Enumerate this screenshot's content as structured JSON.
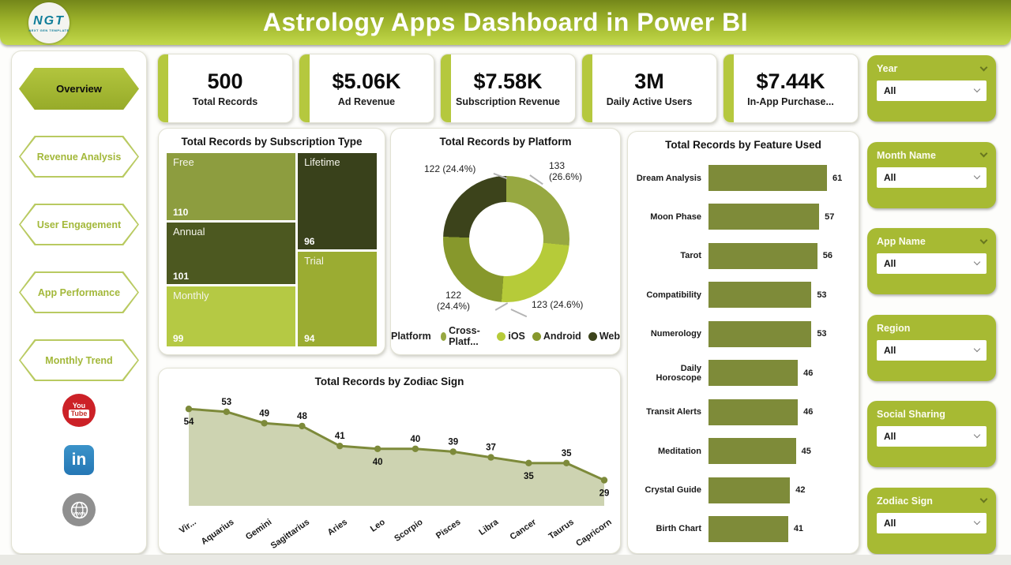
{
  "header": {
    "title": "Astrology Apps Dashboard in Power BI",
    "logo": {
      "text": "NGT",
      "subtext": "NEXT GEN TEMPLATE"
    }
  },
  "nav": {
    "items": [
      {
        "label": "Overview",
        "active": true
      },
      {
        "label": "Revenue Analysis",
        "active": false
      },
      {
        "label": "User Engagement",
        "active": false
      },
      {
        "label": "App Performance",
        "active": false
      },
      {
        "label": "Monthly Trend",
        "active": false
      }
    ],
    "social": [
      {
        "name": "youtube",
        "line1": "You",
        "line2": "Tube",
        "color": "#cc2127"
      },
      {
        "name": "linkedin",
        "text": "in",
        "color": "#2577b5"
      },
      {
        "name": "website",
        "color": "#8f8f8f"
      }
    ]
  },
  "kpis": [
    {
      "value": "500",
      "label": "Total Records"
    },
    {
      "value": "$5.06K",
      "label": "Ad Revenue"
    },
    {
      "value": "$7.58K",
      "label": "Subscription Revenue"
    },
    {
      "value": "3M",
      "label": "Daily Active Users"
    },
    {
      "value": "$7.44K",
      "label": "In-App Purchase..."
    }
  ],
  "filters": [
    {
      "title": "Year",
      "value": "All",
      "collapse_chevron": true
    },
    {
      "title": "Month Name",
      "value": "All",
      "collapse_chevron": true
    },
    {
      "title": "App Name",
      "value": "All",
      "collapse_chevron": true
    },
    {
      "title": "Region",
      "value": "All",
      "collapse_chevron": false
    },
    {
      "title": "Social Sharing",
      "value": "All",
      "collapse_chevron": false
    },
    {
      "title": "Zodiac Sign",
      "value": "All",
      "collapse_chevron": true
    }
  ],
  "accent": {
    "green": "#a7ba33",
    "kpi_bar": "#b5c83e",
    "header_top": "#74871a",
    "header_bottom": "#c2d84a"
  },
  "chart_data": [
    {
      "type": "treemap",
      "title": "Total Records by Subscription Type",
      "items": [
        {
          "label": "Free",
          "value": 110,
          "color": "#8d9d3f"
        },
        {
          "label": "Annual",
          "value": 101,
          "color": "#4c5820"
        },
        {
          "label": "Monthly",
          "value": 99,
          "color": "#b5c944"
        },
        {
          "label": "Lifetime",
          "value": 96,
          "color": "#39411b"
        },
        {
          "label": "Trial",
          "value": 94,
          "color": "#9bac32"
        }
      ],
      "layout": {
        "left_column": [
          "Free",
          "Annual",
          "Monthly"
        ],
        "right_column": [
          "Lifetime",
          "Trial"
        ]
      }
    },
    {
      "type": "pie",
      "title": "Total Records by Platform",
      "legend_title": "Platform",
      "legend_position": "bottom",
      "slices": [
        {
          "label": "Cross-Platf...",
          "value": 133,
          "pct": "26.6%",
          "color": "#97a841"
        },
        {
          "label": "iOS",
          "value": 123,
          "pct": "24.6%",
          "color": "#b6cb39"
        },
        {
          "label": "Android",
          "value": 122,
          "pct": "24.4%",
          "color": "#87982c"
        },
        {
          "label": "Web",
          "value": 122,
          "pct": "24.4%",
          "color": "#3c431b"
        }
      ],
      "callouts": [
        {
          "slice": 3,
          "lines": 1,
          "pos": "top-left"
        },
        {
          "slice": 0,
          "lines": 2,
          "pos": "top-right"
        },
        {
          "slice": 2,
          "lines": 2,
          "pos": "bottom-left"
        },
        {
          "slice": 1,
          "lines": 1,
          "pos": "bottom-right"
        }
      ]
    },
    {
      "type": "bar",
      "title": "Total Records by Feature Used",
      "orientation": "horizontal",
      "categories": [
        "Dream Analysis",
        "Moon Phase",
        "Tarot",
        "Compatibility",
        "Numerology",
        "Daily Horoscope",
        "Transit Alerts",
        "Meditation",
        "Crystal Guide",
        "Birth Chart"
      ],
      "values": [
        61,
        57,
        56,
        53,
        53,
        46,
        46,
        45,
        42,
        41
      ],
      "bar_color": "#7e8b39",
      "xlim": [
        0,
        61
      ]
    },
    {
      "type": "area",
      "title": "Total Records by Zodiac Sign",
      "categories": [
        "Vir...",
        "Aquarius",
        "Gemini",
        "Sagittarius",
        "Aries",
        "Leo",
        "Scorpio",
        "Pisces",
        "Libra",
        "Cancer",
        "Taurus",
        "Capricorn"
      ],
      "values": [
        54,
        53,
        49,
        48,
        41,
        40,
        40,
        39,
        37,
        35,
        35,
        29
      ],
      "label_below": [
        0,
        5,
        9,
        11
      ],
      "line_color": "#7d8a3a",
      "fill_color": "#cdd3b1",
      "marker_color": "#7d8a3a",
      "ylim": [
        20,
        56
      ]
    }
  ]
}
